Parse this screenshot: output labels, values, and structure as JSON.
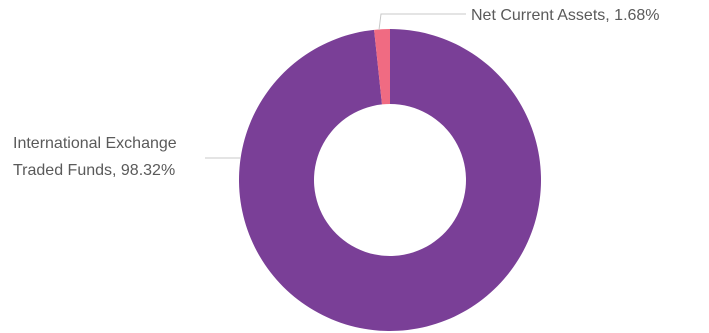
{
  "chart_data": {
    "type": "pie",
    "donut": true,
    "start_angle_deg": 0,
    "slices": [
      {
        "label": "International Exchange Traded Funds",
        "value": 98.32,
        "color": "#7a3f97"
      },
      {
        "label": "Net Current Assets",
        "value": 1.68,
        "color": "#f06b82"
      }
    ],
    "data_labels": [
      {
        "lines": [
          "Net Current Assets, 1.68%"
        ]
      },
      {
        "lines": [
          "International Exchange",
          "Traded Funds, 98.32%"
        ]
      }
    ]
  }
}
